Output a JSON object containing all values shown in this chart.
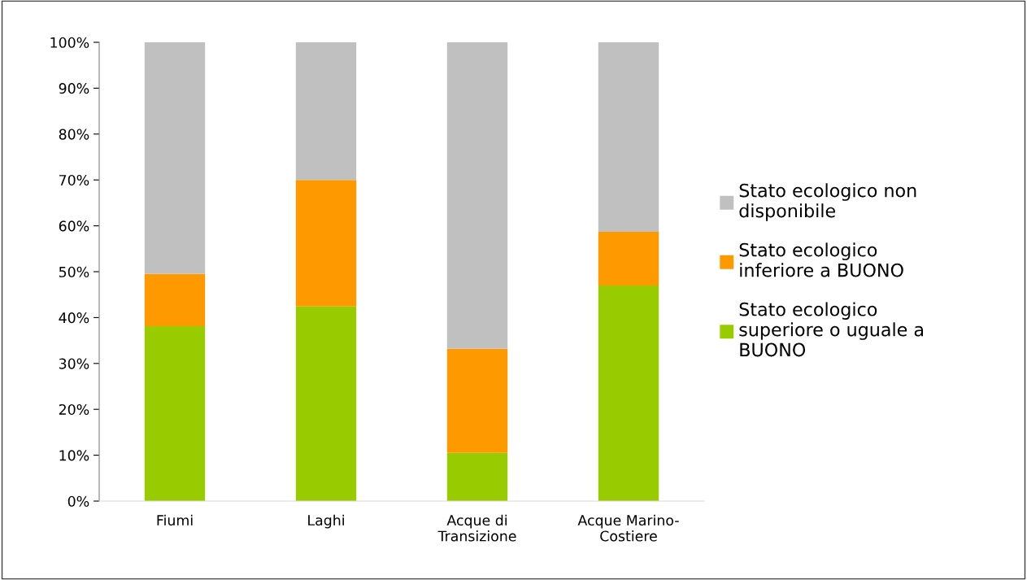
{
  "chart_data": {
    "type": "bar",
    "stacked": true,
    "categories": [
      "Fiumi",
      "Laghi",
      "Acque di\nTransizione",
      "Acque Marino-\nCostiere"
    ],
    "series": [
      {
        "name": "Stato ecologico\nsuperiore o uguale a\nBUONO",
        "color": "#99cc00",
        "values": [
          38.1,
          42.4,
          10.5,
          47.0
        ]
      },
      {
        "name": "Stato ecologico\ninferiore a BUONO",
        "color": "#ff9900",
        "values": [
          11.4,
          27.6,
          22.7,
          11.7
        ]
      },
      {
        "name": "Stato ecologico non\ndisponibile",
        "color": "#c0c0c0",
        "values": [
          50.5,
          30.0,
          66.8,
          41.3
        ]
      }
    ],
    "ylim": [
      0,
      100
    ],
    "yticks": [
      {
        "value": 0,
        "label": "0%"
      },
      {
        "value": 10,
        "label": "10%"
      },
      {
        "value": 20,
        "label": "20%"
      },
      {
        "value": 30,
        "label": "30%"
      },
      {
        "value": 40,
        "label": "40%"
      },
      {
        "value": 50,
        "label": "50%"
      },
      {
        "value": 60,
        "label": "60%"
      },
      {
        "value": 70,
        "label": "70%"
      },
      {
        "value": 80,
        "label": "80%"
      },
      {
        "value": 90,
        "label": "90%"
      },
      {
        "value": 100,
        "label": "100%"
      }
    ],
    "grid": false,
    "legend": "right"
  }
}
